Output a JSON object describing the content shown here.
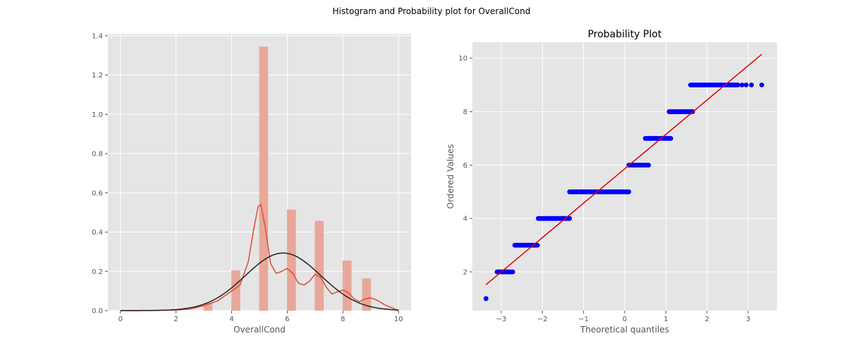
{
  "figure": {
    "suptitle": "Histogram and Probability plot for OverallCond"
  },
  "colors": {
    "axes_bg": "#e5e5e5",
    "grid": "#ffffff",
    "hist_bar": "#e8a799",
    "kde_line": "#e24a33",
    "norm_fit_line": "#222222",
    "qq_points": "#0000ff",
    "qq_line": "#e00000"
  },
  "chart_data": [
    {
      "type": "bar",
      "title": "",
      "xlabel": "OverallCond",
      "ylabel": "",
      "xlim": [
        -0.45,
        10.45
      ],
      "ylim": [
        0,
        1.41
      ],
      "xticks": [
        0,
        2,
        4,
        6,
        8,
        10
      ],
      "yticks": [
        0.0,
        0.2,
        0.4,
        0.6,
        0.8,
        1.0,
        1.2,
        1.4
      ],
      "grid": true,
      "bars": [
        {
          "x": 1.0,
          "value": 0.003
        },
        {
          "x": 2.0,
          "value": 0.007
        },
        {
          "x": 3.15,
          "value": 0.04
        },
        {
          "x": 4.15,
          "value": 0.205
        },
        {
          "x": 5.15,
          "value": 1.345
        },
        {
          "x": 6.15,
          "value": 0.515
        },
        {
          "x": 7.15,
          "value": 0.457
        },
        {
          "x": 8.15,
          "value": 0.255
        },
        {
          "x": 8.85,
          "value": 0.164
        }
      ],
      "bar_width": 0.32,
      "kde": {
        "x": [
          0.0,
          1.0,
          2.0,
          2.5,
          3.0,
          3.5,
          4.0,
          4.3,
          4.6,
          4.8,
          4.95,
          5.05,
          5.2,
          5.4,
          5.6,
          5.8,
          6.0,
          6.2,
          6.4,
          6.6,
          6.8,
          7.0,
          7.2,
          7.4,
          7.6,
          7.8,
          8.0,
          8.2,
          8.4,
          8.6,
          8.8,
          9.0,
          9.2,
          9.5,
          10.0
        ],
        "y": [
          0.0,
          0.001,
          0.003,
          0.008,
          0.025,
          0.05,
          0.1,
          0.13,
          0.25,
          0.42,
          0.53,
          0.54,
          0.43,
          0.24,
          0.19,
          0.2,
          0.215,
          0.19,
          0.14,
          0.13,
          0.15,
          0.185,
          0.17,
          0.12,
          0.085,
          0.095,
          0.105,
          0.09,
          0.06,
          0.045,
          0.06,
          0.065,
          0.055,
          0.03,
          0.0
        ]
      },
      "norm_fit": {
        "mean": 5.85,
        "sd": 1.36
      }
    },
    {
      "type": "scatter",
      "title": "Probability Plot",
      "xlabel": "Theoretical quantiles",
      "ylabel": "Ordered Values",
      "xlim": [
        -3.7,
        3.7
      ],
      "ylim": [
        0.55,
        10.6
      ],
      "xticks": [
        -3,
        -2,
        -1,
        0,
        1,
        2,
        3
      ],
      "yticks": [
        2,
        4,
        6,
        8,
        10
      ],
      "grid": true,
      "segments": [
        {
          "y": 1,
          "x_from": -3.37,
          "x_to": -3.37
        },
        {
          "y": 2,
          "x_from": -3.1,
          "x_to": -2.72
        },
        {
          "y": 3,
          "x_from": -2.67,
          "x_to": -2.12
        },
        {
          "y": 4,
          "x_from": -2.1,
          "x_to": -1.34
        },
        {
          "y": 5,
          "x_from": -1.34,
          "x_to": 0.1
        },
        {
          "y": 6,
          "x_from": 0.1,
          "x_to": 0.58
        },
        {
          "y": 7,
          "x_from": 0.5,
          "x_to": 1.12
        },
        {
          "y": 8,
          "x_from": 1.08,
          "x_to": 1.65
        },
        {
          "y": 9,
          "x_from": 1.6,
          "x_to": 2.75
        }
      ],
      "extra_points": [
        {
          "x": -2.95,
          "y": 2
        },
        {
          "x": -2.85,
          "y": 2
        },
        {
          "x": 2.85,
          "y": 9
        },
        {
          "x": 2.95,
          "y": 9
        },
        {
          "x": 3.08,
          "y": 9
        },
        {
          "x": 3.33,
          "y": 9
        }
      ],
      "fit_line": {
        "x": [
          -3.37,
          3.33
        ],
        "y": [
          1.52,
          10.15
        ]
      }
    }
  ]
}
